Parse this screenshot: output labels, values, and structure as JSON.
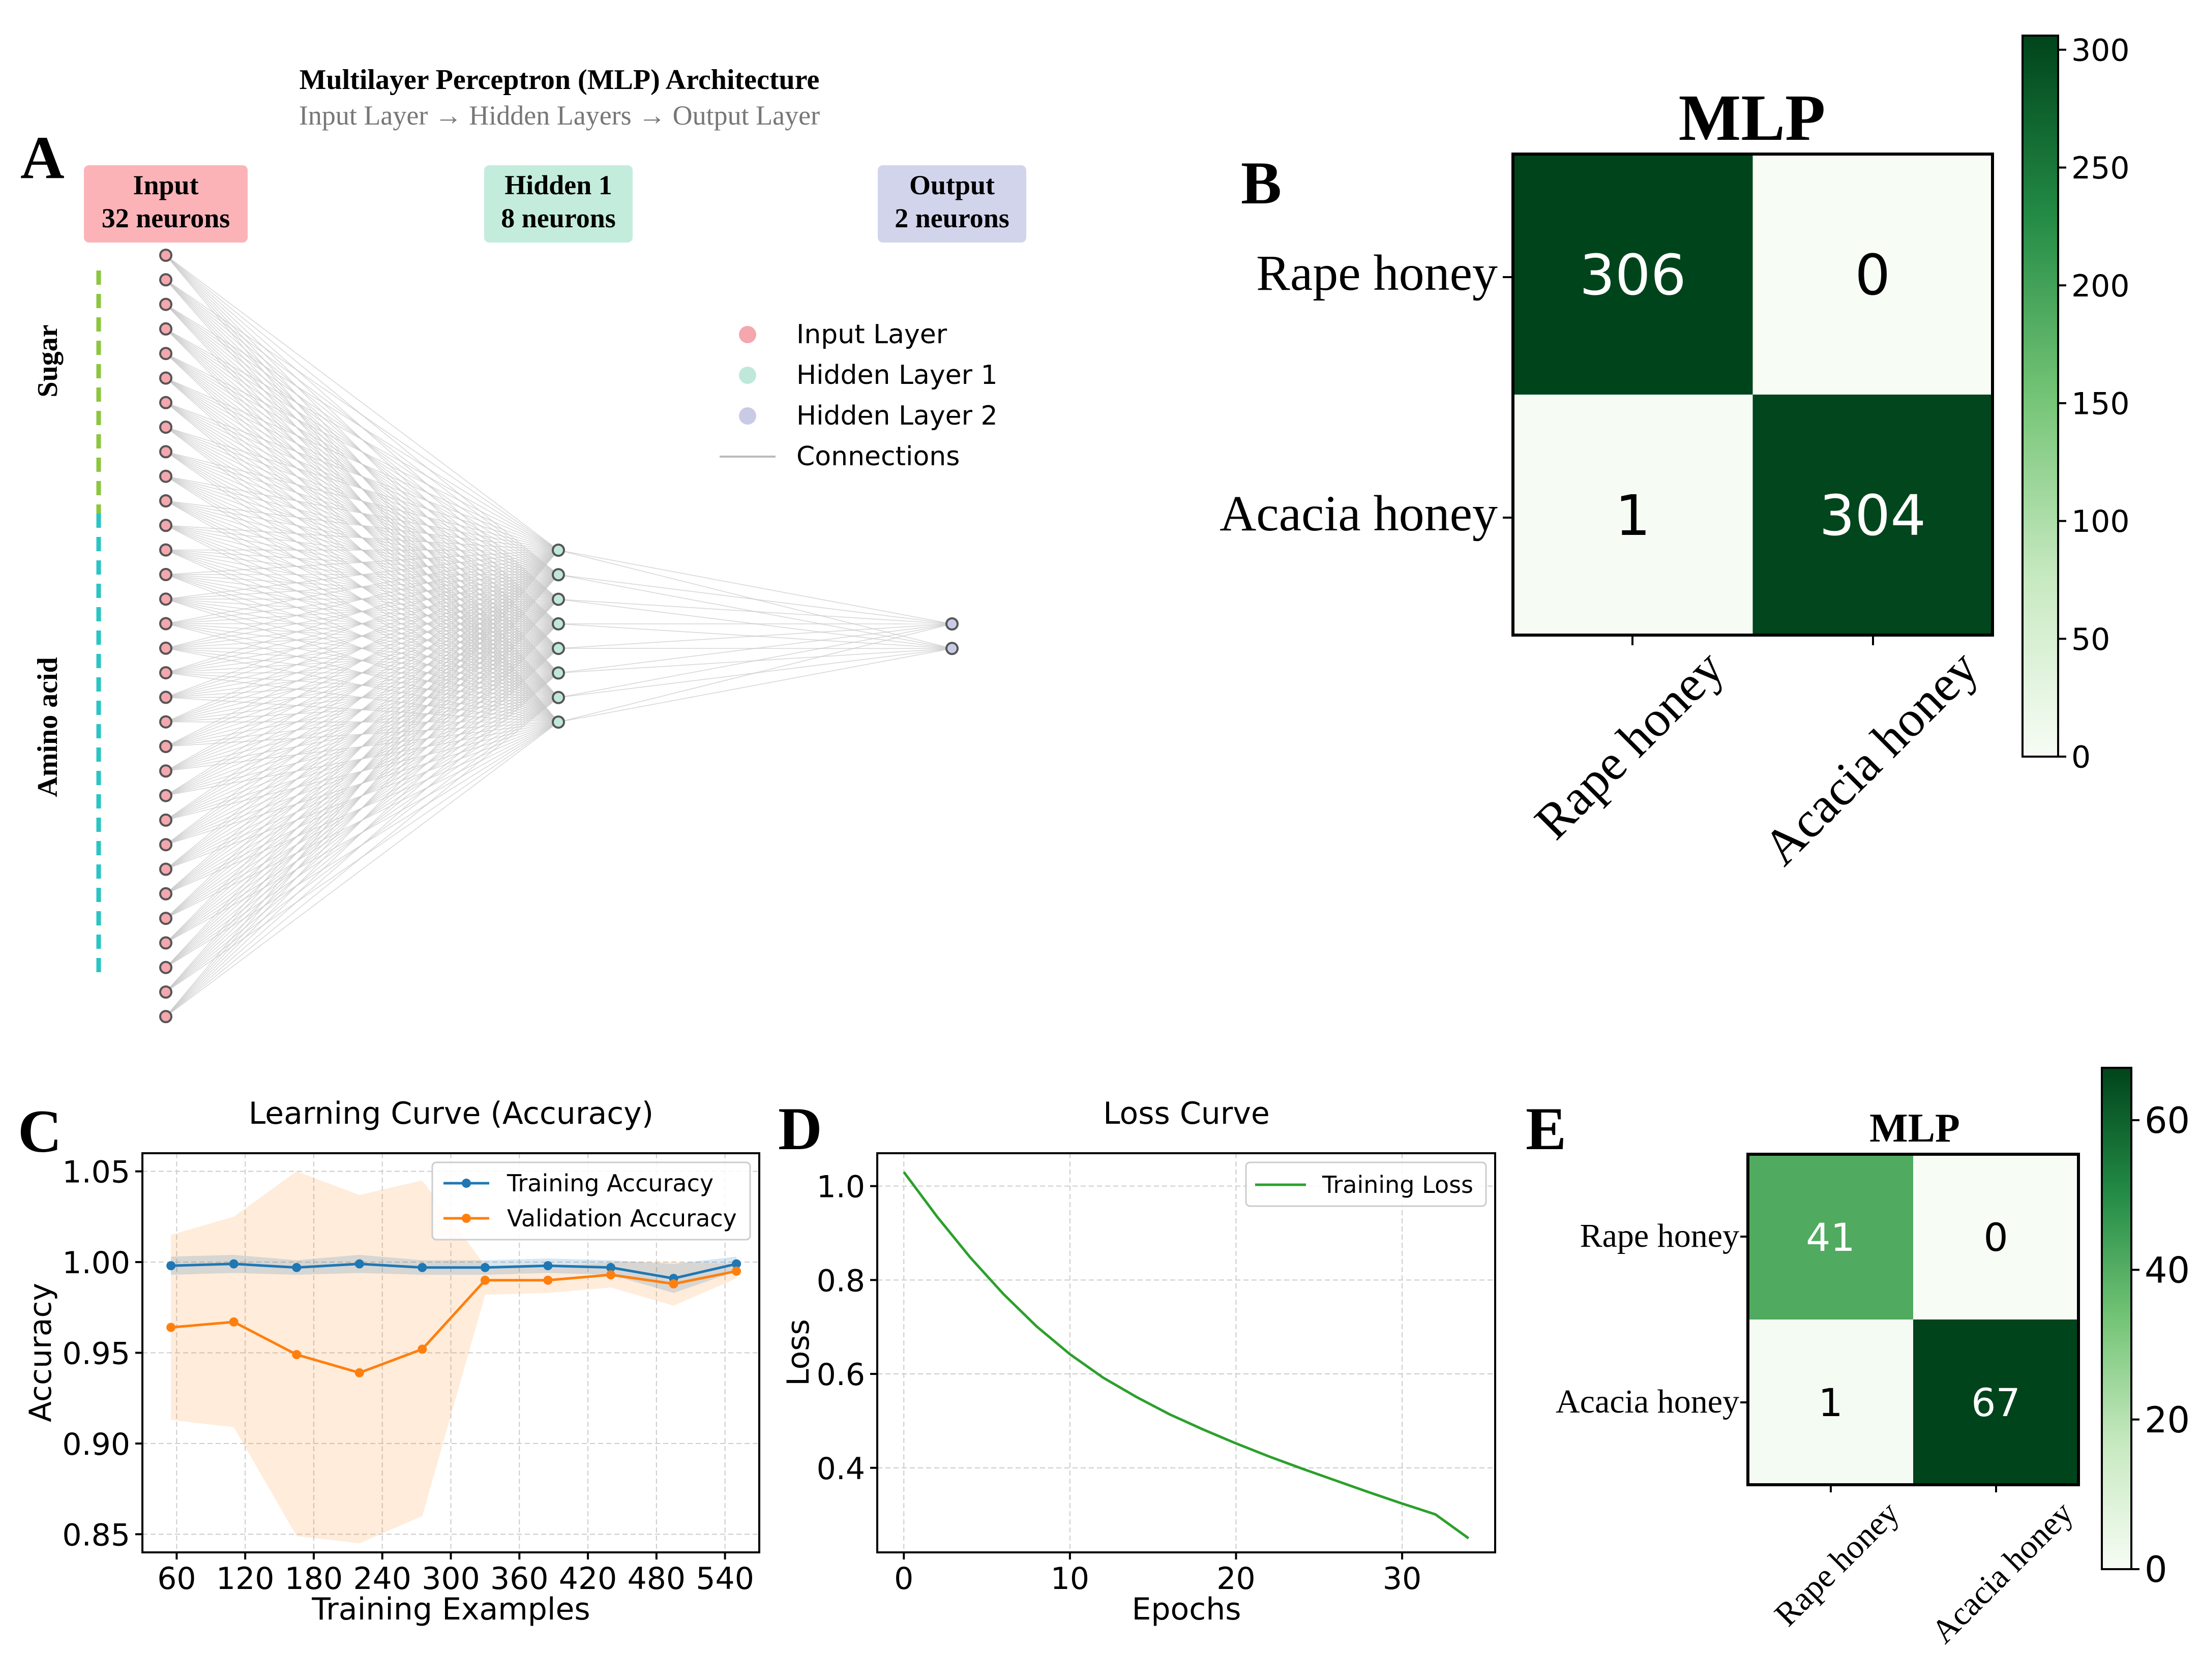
{
  "panels": {
    "A": {
      "letter": "A",
      "title": "Multilayer Perceptron (MLP) Architecture",
      "subtitle": "Input Layer → Hidden Layers → Output Layer",
      "input_box": {
        "line1": "Input",
        "line2": "32 neurons"
      },
      "hidden_box": {
        "line1": "Hidden 1",
        "line2": "8 neurons"
      },
      "output_box": {
        "line1": "Output",
        "line2": "2 neurons"
      },
      "side_labels": {
        "sugar": "Sugar",
        "amino": "Amino acid"
      },
      "legend": [
        "Input Layer",
        "Hidden Layer 1",
        "Hidden Layer 2",
        "Connections"
      ],
      "colors": {
        "input": "#f4a7ad",
        "hidden": "#bfe8da",
        "output": "#c9cbe6",
        "sugar_line": "#8cc63f",
        "amino_line": "#2bc4c4"
      }
    },
    "B": {
      "letter": "B"
    },
    "C": {
      "letter": "C"
    },
    "D": {
      "letter": "D"
    },
    "E": {
      "letter": "E"
    }
  },
  "chart_data": [
    {
      "type": "diagram",
      "id": "mlp-architecture",
      "layers": [
        {
          "name": "Input",
          "neurons": 32
        },
        {
          "name": "Hidden 1",
          "neurons": 8
        },
        {
          "name": "Output",
          "neurons": 2
        }
      ]
    },
    {
      "type": "heatmap",
      "id": "confusion-B",
      "title": "MLP",
      "row_labels": [
        "Rape honey",
        "Acacia honey"
      ],
      "col_labels": [
        "Rape honey",
        "Acacia honey"
      ],
      "values": [
        [
          306,
          0
        ],
        [
          1,
          304
        ]
      ],
      "colorbar": {
        "min": 0,
        "max": 306,
        "ticks": [
          "0",
          "50",
          "100",
          "150",
          "200",
          "250",
          "300"
        ]
      }
    },
    {
      "type": "line",
      "id": "learning-curve",
      "title": "Learning Curve (Accuracy)",
      "xlabel": "Training Examples",
      "ylabel": "Accuracy",
      "x": [
        55,
        110,
        165,
        220,
        275,
        330,
        385,
        440,
        495,
        550
      ],
      "xticks": [
        "60",
        "120",
        "180",
        "240",
        "300",
        "360",
        "420",
        "480",
        "540"
      ],
      "yticks": [
        "0.85",
        "0.90",
        "0.95",
        "1.00",
        "1.05"
      ],
      "xlim": [
        30,
        570
      ],
      "ylim": [
        0.84,
        1.06
      ],
      "series": [
        {
          "name": "Training Accuracy",
          "color": "#1f77b4",
          "values": [
            0.998,
            0.999,
            0.997,
            0.999,
            0.997,
            0.997,
            0.998,
            0.997,
            0.991,
            0.999
          ],
          "band_low": [
            0.993,
            0.994,
            0.993,
            0.994,
            0.993,
            0.993,
            0.994,
            0.993,
            0.983,
            0.995
          ],
          "band_high": [
            1.003,
            1.004,
            1.001,
            1.004,
            1.001,
            1.001,
            1.002,
            1.001,
            0.999,
            1.003
          ]
        },
        {
          "name": "Validation Accuracy",
          "color": "#ff7f0e",
          "values": [
            0.964,
            0.967,
            0.949,
            0.939,
            0.952,
            0.99,
            0.99,
            0.993,
            0.988,
            0.995
          ],
          "band_low": [
            0.913,
            0.909,
            0.849,
            0.845,
            0.86,
            0.982,
            0.983,
            0.986,
            0.976,
            0.991
          ],
          "band_high": [
            1.015,
            1.025,
            1.05,
            1.037,
            1.045,
            0.998,
            0.997,
            1.0,
            1.0,
            0.999
          ]
        }
      ]
    },
    {
      "type": "line",
      "id": "loss-curve",
      "title": "Loss Curve",
      "xlabel": "Epochs",
      "ylabel": "Loss",
      "series": [
        {
          "name": "Training Loss",
          "color": "#2ca02c",
          "x": [
            0,
            2,
            4,
            6,
            8,
            10,
            12,
            14,
            16,
            18,
            20,
            22,
            24,
            26,
            28,
            30,
            32,
            34
          ],
          "values": [
            1.03,
            0.935,
            0.848,
            0.77,
            0.701,
            0.642,
            0.592,
            0.551,
            0.514,
            0.482,
            0.452,
            0.424,
            0.398,
            0.373,
            0.348,
            0.324,
            0.301,
            0.25
          ]
        }
      ],
      "xticks": [
        "0",
        "10",
        "20",
        "30"
      ],
      "yticks": [
        "0.4",
        "0.6",
        "0.8",
        "1.0"
      ],
      "xlim": [
        -1.6,
        35.6
      ],
      "ylim": [
        0.22,
        1.07
      ]
    },
    {
      "type": "heatmap",
      "id": "confusion-E",
      "title": "MLP",
      "row_labels": [
        "Rape honey",
        "Acacia honey"
      ],
      "col_labels": [
        "Rape honey",
        "Acacia honey"
      ],
      "values": [
        [
          41,
          0
        ],
        [
          1,
          67
        ]
      ],
      "colorbar": {
        "min": 0,
        "max": 67,
        "ticks": [
          "0",
          "20",
          "40",
          "60"
        ]
      }
    }
  ]
}
